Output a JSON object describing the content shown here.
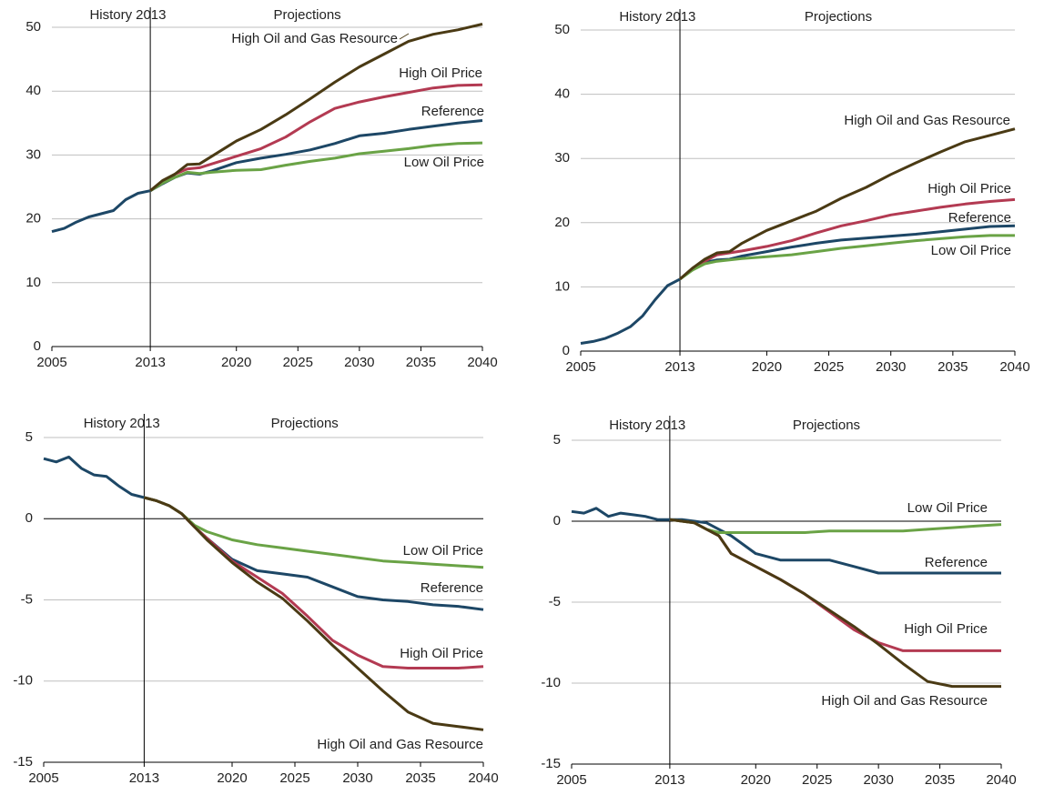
{
  "chart_data": [
    {
      "type": "line",
      "annotations": {
        "history": "History",
        "divider": 2013,
        "projections": "Projections"
      },
      "x": [
        2005,
        2006,
        2007,
        2008,
        2009,
        2010,
        2011,
        2012,
        2013,
        2014,
        2015,
        2016,
        2017,
        2018,
        2020,
        2022,
        2024,
        2026,
        2028,
        2030,
        2032,
        2034,
        2036,
        2038,
        2040
      ],
      "xlim": [
        2005,
        2040
      ],
      "xticks": [
        2005,
        2013,
        2020,
        2025,
        2030,
        2035,
        2040
      ],
      "ylim": [
        0,
        50
      ],
      "yticks": [
        0,
        10,
        20,
        30,
        40,
        50
      ],
      "grid": true,
      "series": [
        {
          "name": "Reference",
          "color": "#1d4766",
          "values": [
            18,
            18.5,
            19.5,
            20.3,
            20.8,
            21.3,
            23,
            24,
            24.4,
            25.5,
            26.5,
            27.2,
            27,
            27.5,
            28.8,
            29.5,
            30.1,
            30.8,
            31.8,
            33,
            33.4,
            34,
            34.5,
            35,
            35.4
          ]
        },
        {
          "name": "High Oil Price",
          "color": "#b33a52",
          "values": [
            null,
            null,
            null,
            null,
            null,
            null,
            null,
            null,
            24.4,
            25.8,
            27,
            27.8,
            28,
            28.6,
            29.8,
            31,
            32.8,
            35.2,
            37.3,
            38.3,
            39.1,
            39.8,
            40.5,
            40.9,
            41
          ]
        },
        {
          "name": "Low Oil Price",
          "color": "#6aa346",
          "values": [
            null,
            null,
            null,
            null,
            null,
            null,
            null,
            null,
            24.4,
            25.6,
            26.5,
            27.3,
            27.1,
            27.3,
            27.6,
            27.7,
            28.4,
            29,
            29.5,
            30.2,
            30.6,
            31,
            31.5,
            31.8,
            31.9
          ]
        },
        {
          "name": "High Oil and Gas Resource",
          "color": "#4a3a14",
          "values": [
            null,
            null,
            null,
            null,
            null,
            null,
            null,
            null,
            24.4,
            26,
            27,
            28.5,
            28.6,
            29.8,
            32.2,
            34,
            36.3,
            38.8,
            41.4,
            43.8,
            45.8,
            47.8,
            48.9,
            49.6,
            50.5
          ]
        }
      ]
    },
    {
      "type": "line",
      "annotations": {
        "history": "History",
        "divider": 2013,
        "projections": "Projections"
      },
      "x": [
        2005,
        2006,
        2007,
        2008,
        2009,
        2010,
        2011,
        2012,
        2013,
        2014,
        2015,
        2016,
        2017,
        2018,
        2020,
        2022,
        2024,
        2026,
        2028,
        2030,
        2032,
        2034,
        2036,
        2038,
        2040
      ],
      "xlim": [
        2005,
        2040
      ],
      "xticks": [
        2005,
        2013,
        2020,
        2025,
        2030,
        2035,
        2040
      ],
      "ylim": [
        0,
        50
      ],
      "yticks": [
        0,
        10,
        20,
        30,
        40,
        50
      ],
      "grid": true,
      "series": [
        {
          "name": "Reference",
          "color": "#1d4766",
          "values": [
            1.2,
            1.5,
            2,
            2.8,
            3.8,
            5.5,
            8,
            10.2,
            11.2,
            12.8,
            13.8,
            14.2,
            14.3,
            14.8,
            15.5,
            16.2,
            16.8,
            17.3,
            17.6,
            17.9,
            18.2,
            18.6,
            19,
            19.4,
            19.5
          ]
        },
        {
          "name": "High Oil Price",
          "color": "#b33a52",
          "values": [
            null,
            null,
            null,
            null,
            null,
            null,
            null,
            null,
            11.2,
            12.8,
            14,
            15,
            15.3,
            15.6,
            16.3,
            17.2,
            18.4,
            19.5,
            20.3,
            21.2,
            21.8,
            22.4,
            22.9,
            23.3,
            23.6
          ]
        },
        {
          "name": "Low Oil Price",
          "color": "#6aa346",
          "values": [
            null,
            null,
            null,
            null,
            null,
            null,
            null,
            null,
            11.2,
            12.6,
            13.6,
            14,
            14.2,
            14.4,
            14.7,
            15,
            15.5,
            16,
            16.4,
            16.8,
            17.2,
            17.5,
            17.8,
            18,
            18
          ]
        },
        {
          "name": "High Oil and Gas Resource",
          "color": "#4a3a14",
          "values": [
            null,
            null,
            null,
            null,
            null,
            null,
            null,
            null,
            11.2,
            12.9,
            14.3,
            15.3,
            15.5,
            16.8,
            18.8,
            20.3,
            21.8,
            23.8,
            25.5,
            27.5,
            29.3,
            31,
            32.6,
            33.6,
            34.6
          ]
        }
      ]
    },
    {
      "type": "line",
      "annotations": {
        "history": "History",
        "divider": 2013,
        "projections": "Projections"
      },
      "x": [
        2005,
        2006,
        2007,
        2008,
        2009,
        2010,
        2011,
        2012,
        2013,
        2014,
        2015,
        2016,
        2017,
        2018,
        2020,
        2022,
        2024,
        2026,
        2028,
        2030,
        2032,
        2034,
        2036,
        2038,
        2040
      ],
      "xlim": [
        2005,
        2040
      ],
      "xticks": [
        2005,
        2013,
        2020,
        2025,
        2030,
        2035,
        2040
      ],
      "ylim": [
        -15,
        5
      ],
      "yticks": [
        -15,
        -10,
        -5,
        0,
        5
      ],
      "grid": true,
      "series": [
        {
          "name": "Reference",
          "color": "#1d4766",
          "values": [
            3.7,
            3.5,
            3.8,
            3.1,
            2.7,
            2.6,
            2,
            1.5,
            1.3,
            1.1,
            0.8,
            0.3,
            -0.5,
            -1.2,
            -2.5,
            -3.2,
            -3.4,
            -3.6,
            -4.2,
            -4.8,
            -5,
            -5.1,
            -5.3,
            -5.4,
            -5.6
          ]
        },
        {
          "name": "High Oil Price",
          "color": "#b33a52",
          "values": [
            null,
            null,
            null,
            null,
            null,
            null,
            null,
            null,
            1.3,
            1.1,
            0.8,
            0.3,
            -0.5,
            -1.2,
            -2.6,
            -3.6,
            -4.6,
            -6,
            -7.5,
            -8.4,
            -9.1,
            -9.2,
            -9.2,
            -9.2,
            -9.1
          ]
        },
        {
          "name": "Low Oil Price",
          "color": "#6aa346",
          "values": [
            null,
            null,
            null,
            null,
            null,
            null,
            null,
            null,
            1.3,
            1.1,
            0.8,
            0.3,
            -0.4,
            -0.8,
            -1.3,
            -1.6,
            -1.8,
            -2,
            -2.2,
            -2.4,
            -2.6,
            -2.7,
            -2.8,
            -2.9,
            -3
          ]
        },
        {
          "name": "High Oil and Gas Resource",
          "color": "#4a3a14",
          "values": [
            null,
            null,
            null,
            null,
            null,
            null,
            null,
            null,
            1.3,
            1.1,
            0.8,
            0.3,
            -0.5,
            -1.3,
            -2.7,
            -3.9,
            -4.9,
            -6.3,
            -7.8,
            -9.2,
            -10.6,
            -11.9,
            -12.6,
            -12.8,
            -13
          ]
        }
      ]
    },
    {
      "type": "line",
      "annotations": {
        "history": "History",
        "divider": 2013,
        "projections": "Projections"
      },
      "x": [
        2005,
        2006,
        2007,
        2008,
        2009,
        2010,
        2011,
        2012,
        2013,
        2014,
        2015,
        2016,
        2017,
        2018,
        2020,
        2022,
        2024,
        2026,
        2028,
        2030,
        2032,
        2034,
        2036,
        2038,
        2040
      ],
      "xlim": [
        2005,
        2040
      ],
      "xticks": [
        2005,
        2013,
        2020,
        2025,
        2030,
        2035,
        2040
      ],
      "ylim": [
        -15,
        5
      ],
      "yticks": [
        -15,
        -10,
        -5,
        0,
        5
      ],
      "grid": true,
      "series": [
        {
          "name": "Reference",
          "color": "#1d4766",
          "values": [
            0.6,
            0.5,
            0.8,
            0.3,
            0.5,
            0.4,
            0.3,
            0.1,
            0.1,
            0.1,
            0,
            -0.1,
            -0.5,
            -0.9,
            -2,
            -2.4,
            -2.4,
            -2.4,
            -2.8,
            -3.2,
            -3.2,
            -3.2,
            -3.2,
            -3.2,
            -3.2
          ]
        },
        {
          "name": "High Oil Price",
          "color": "#b33a52",
          "values": [
            null,
            null,
            null,
            null,
            null,
            null,
            null,
            null,
            0.1,
            0,
            -0.1,
            -0.5,
            -0.9,
            -2,
            -2.8,
            -3.6,
            -4.5,
            -5.6,
            -6.7,
            -7.5,
            -8,
            -8,
            -8,
            -8,
            -8
          ]
        },
        {
          "name": "Low Oil Price",
          "color": "#6aa346",
          "values": [
            null,
            null,
            null,
            null,
            null,
            null,
            null,
            null,
            0.1,
            0,
            -0.1,
            -0.5,
            -0.7,
            -0.7,
            -0.7,
            -0.7,
            -0.7,
            -0.6,
            -0.6,
            -0.6,
            -0.6,
            -0.5,
            -0.4,
            -0.3,
            -0.2
          ]
        },
        {
          "name": "High Oil and Gas Resource",
          "color": "#4a3a14",
          "values": [
            null,
            null,
            null,
            null,
            null,
            null,
            null,
            null,
            0.1,
            0,
            -0.1,
            -0.5,
            -0.9,
            -2,
            -2.8,
            -3.6,
            -4.5,
            -5.5,
            -6.5,
            -7.6,
            -8.8,
            -9.9,
            -10.2,
            -10.2,
            -10.2
          ]
        }
      ]
    }
  ]
}
